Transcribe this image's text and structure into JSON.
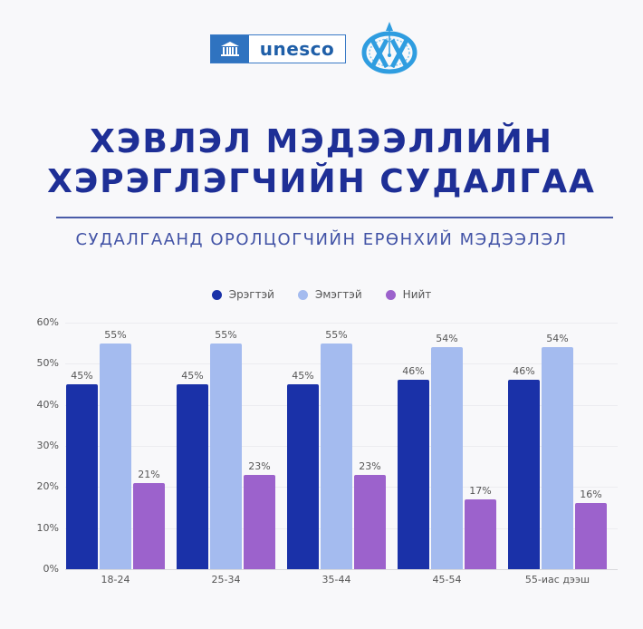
{
  "header": {
    "logos": [
      {
        "name": "unesco-logo",
        "text": "unesco",
        "color": "#2f73c0"
      },
      {
        "name": "partner-logo",
        "color": "#2f9de0"
      }
    ],
    "title_line_1": "ХЭВЛЭЛ МЭДЭЭЛЛИЙН",
    "title_line_2": "ХЭРЭГЛЭГЧИЙН СУДАЛГАА",
    "subtitle": "СУДАЛГААНД ОРОЛЦОГЧИЙН ЕРӨНХИЙ МЭДЭЭЛЭЛ",
    "title_color": "#1e2f96"
  },
  "legend": [
    {
      "label": "Эрэгтэй",
      "color": "#1a31a8"
    },
    {
      "label": "Эмэгтэй",
      "color": "#a4bbef"
    },
    {
      "label": "Нийт",
      "color": "#9c62cc"
    }
  ],
  "y_ticks": [
    "60%",
    "50%",
    "40%",
    "30%",
    "20%",
    "10%",
    "0%"
  ],
  "chart_data": {
    "type": "bar",
    "title": "СУДАЛГААНД ОРОЛЦОГЧИЙН ЕРӨНХИЙ МЭДЭЭЛЭЛ",
    "xlabel": "",
    "ylabel": "",
    "ylim": [
      0,
      60
    ],
    "grid": true,
    "legend_position": "top",
    "categories": [
      "18-24",
      "25-34",
      "35-44",
      "45-54",
      "55-иас дээш"
    ],
    "series": [
      {
        "name": "Эрэгтэй",
        "color": "#1a31a8",
        "values": [
          45,
          45,
          45,
          46,
          46
        ],
        "labels": [
          "45%",
          "45%",
          "45%",
          "46%",
          "46%"
        ]
      },
      {
        "name": "Эмэгтэй",
        "color": "#a4bbef",
        "values": [
          55,
          55,
          55,
          54,
          54
        ],
        "labels": [
          "55%",
          "55%",
          "55%",
          "54%",
          "54%"
        ]
      },
      {
        "name": "Нийт",
        "color": "#9c62cc",
        "values": [
          21,
          23,
          23,
          17,
          16
        ],
        "labels": [
          "21%",
          "23%",
          "23%",
          "17%",
          "16%"
        ]
      }
    ]
  }
}
